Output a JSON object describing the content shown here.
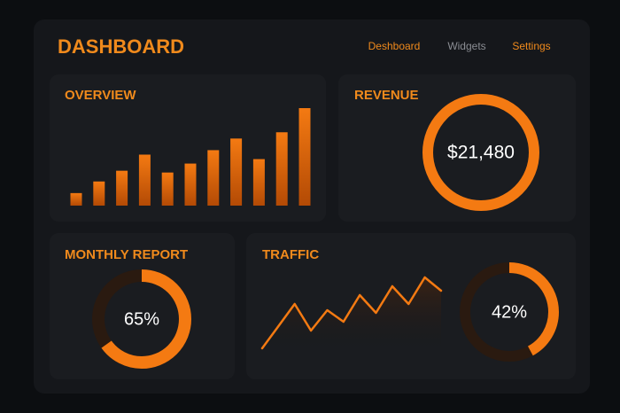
{
  "header": {
    "title": "DASHBOARD",
    "nav": [
      "Deshboard",
      "Widgets",
      "Settings"
    ]
  },
  "chart_data": [
    {
      "type": "bar",
      "title": "OVERVIEW",
      "values": [
        14,
        27,
        39,
        57,
        37,
        47,
        62,
        75,
        52,
        82,
        109
      ],
      "color": "#f47a12"
    },
    {
      "type": "ring",
      "title": "REVENUE",
      "value": 21480,
      "value_label": "$21,480",
      "color": "#f47a12"
    },
    {
      "type": "donut",
      "title": "MONTHLY REPORT",
      "values": [
        65
      ],
      "value_labels": [
        "65%"
      ],
      "color": "#f47a12"
    },
    {
      "type": "line",
      "title": "TRAFFIC",
      "values": [
        5,
        30,
        55,
        25,
        48,
        35,
        65,
        45,
        75,
        55,
        85,
        70
      ],
      "color": "#f47a12"
    },
    {
      "type": "donut",
      "values": [
        42
      ],
      "value_labels": [
        "42%"
      ],
      "color": "#f47a12"
    }
  ]
}
